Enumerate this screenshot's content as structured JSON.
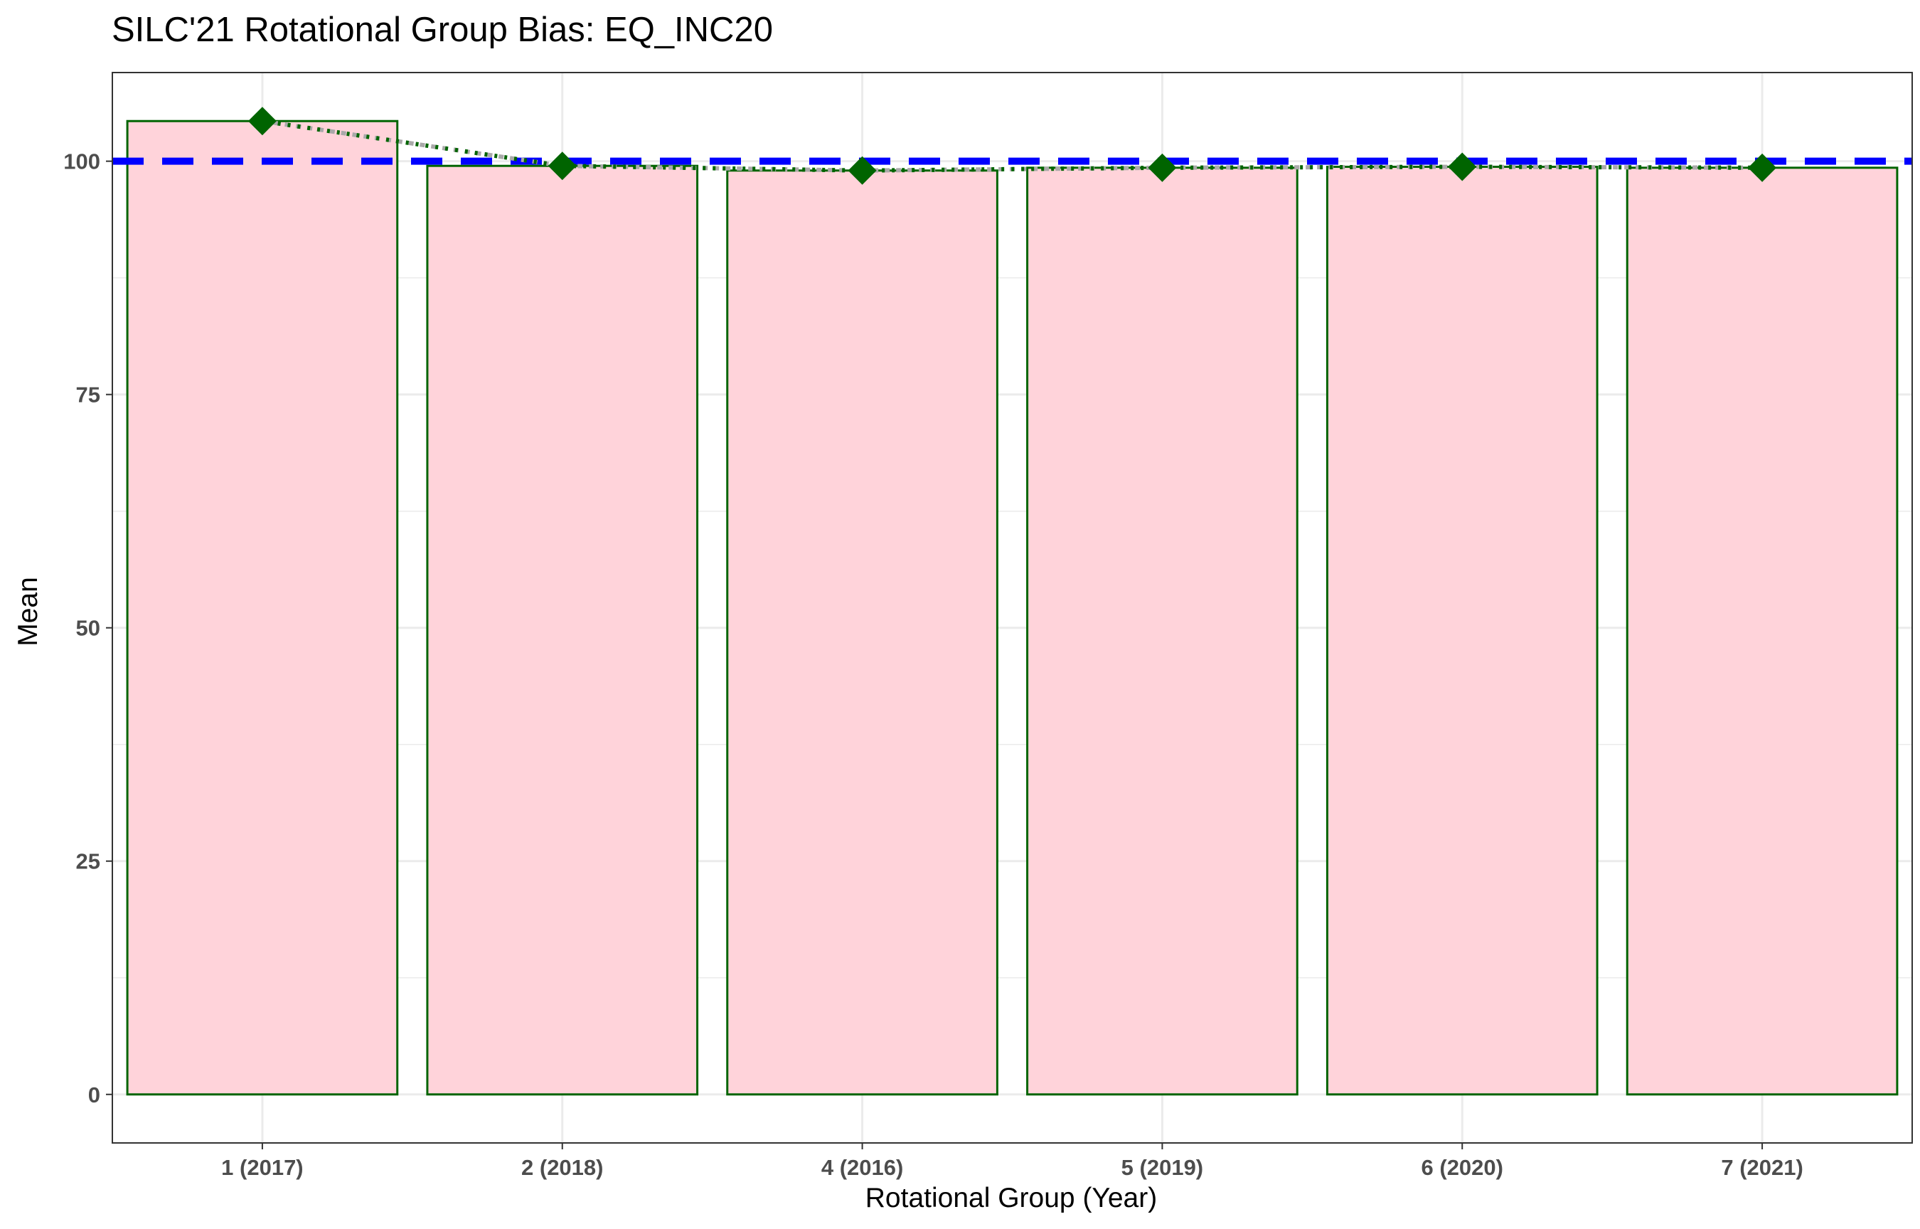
{
  "chart_data": {
    "type": "bar",
    "title": "SILC'21 Rotational Group Bias: EQ_INC20",
    "xlabel": "Rotational Group (Year)",
    "ylabel": "Mean",
    "categories": [
      "1 (2017)",
      "2 (2018)",
      "4 (2016)",
      "5 (2019)",
      "6 (2020)",
      "7 (2021)"
    ],
    "series": [
      {
        "values": [
          104.3,
          99.5,
          99.0,
          99.3,
          99.4,
          99.3
        ]
      }
    ],
    "reference_line": {
      "value": 100,
      "style": "dashed",
      "color": "#0000FF"
    },
    "yticks": [
      0,
      25,
      50,
      75,
      100
    ],
    "ylim": [
      -5.2,
      109.5
    ],
    "grid": true,
    "colors": {
      "bar_fill": "#FFD3DA",
      "bar_stroke": "#006400",
      "marker": "#006400",
      "trend_line": "#006400",
      "trend_line_grey": "#A9A9A9",
      "reference": "#0000FF",
      "grid": "#EBEBEB",
      "panel_border": "#333333"
    }
  }
}
